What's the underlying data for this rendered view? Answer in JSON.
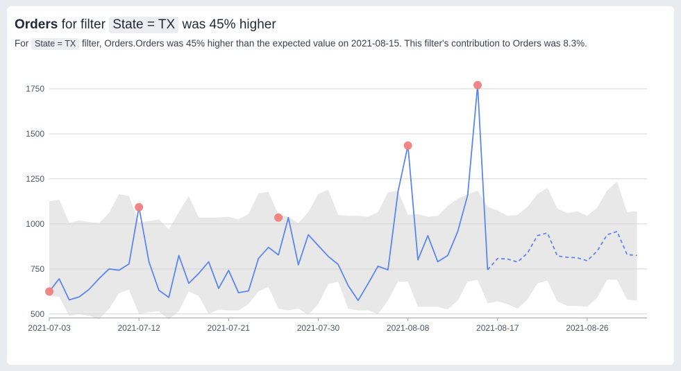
{
  "header": {
    "title_metric": "Orders",
    "title_mid": "for filter",
    "title_filter": "State = TX",
    "title_end": "was 45% higher",
    "subtitle_prefix": "For",
    "subtitle_filter": "State = TX",
    "subtitle_text": "filter, Orders.Orders was 45% higher than the expected value on 2021-08-15. This filter's contribution to Orders was 8.3%."
  },
  "colors": {
    "line": "#5b86f0",
    "band": "#e8e8e8",
    "anomaly": "#f08080",
    "grid": "#d4d4d4"
  },
  "chart_data": {
    "type": "line",
    "x_start": "2021-07-03",
    "x_end": "2021-09-01",
    "ylim": [
      480,
      1800
    ],
    "yticks": [
      500,
      750,
      1000,
      1250,
      1500,
      1750
    ],
    "xticks": [
      "2021-07-03",
      "2021-07-12",
      "2021-07-21",
      "2021-07-30",
      "2021-08-08",
      "2021-08-17",
      "2021-08-26"
    ],
    "forecast_start": "2021-08-16",
    "series": [
      {
        "values": [
          625,
          695,
          578,
          595,
          637,
          697,
          750,
          743,
          778,
          1093,
          790,
          632,
          592,
          825,
          670,
          725,
          790,
          642,
          742,
          618,
          628,
          808,
          870,
          828,
          1035,
          773,
          940,
          880,
          820,
          775,
          658,
          575,
          668,
          765,
          745,
          1178,
          1435,
          800,
          935,
          790,
          825,
          958,
          1160,
          1770,
          745,
          808,
          805,
          788,
          838,
          935,
          950,
          822,
          815,
          812,
          795,
          850,
          940,
          958,
          830,
          825
        ]
      }
    ],
    "expected_range": {
      "upper": [
        1125,
        1135,
        1005,
        1020,
        1010,
        1005,
        1060,
        1165,
        1155,
        1010,
        1015,
        1025,
        970,
        1065,
        1155,
        1035,
        1035,
        1035,
        1040,
        1025,
        1055,
        1170,
        1178,
        1050,
        1040,
        1005,
        1065,
        1165,
        1190,
        1050,
        1045,
        1045,
        1040,
        1065,
        1175,
        1185,
        1050,
        1055,
        1040,
        1045,
        1100,
        1140,
        1165,
        1185,
        1095,
        1075,
        1045,
        1050,
        1095,
        1165,
        1200,
        1085,
        1060,
        1070,
        1045,
        1090,
        1185,
        1235,
        1065,
        1070
      ],
      "lower": [
        600,
        595,
        490,
        500,
        490,
        470,
        530,
        615,
        635,
        500,
        510,
        515,
        470,
        515,
        625,
        600,
        500,
        525,
        520,
        520,
        555,
        625,
        650,
        530,
        520,
        530,
        495,
        555,
        665,
        680,
        530,
        520,
        520,
        500,
        575,
        680,
        680,
        540,
        540,
        540,
        525,
        575,
        680,
        690,
        560,
        570,
        555,
        530,
        580,
        670,
        685,
        570,
        545,
        545,
        540,
        590,
        690,
        690,
        580,
        575
      ]
    },
    "anomalies": [
      {
        "x": "2021-07-03",
        "y": 625
      },
      {
        "x": "2021-07-12",
        "y": 1093
      },
      {
        "x": "2021-07-26",
        "y": 1035
      },
      {
        "x": "2021-08-08",
        "y": 1435
      },
      {
        "x": "2021-08-15",
        "y": 1770
      }
    ],
    "grid": true
  }
}
